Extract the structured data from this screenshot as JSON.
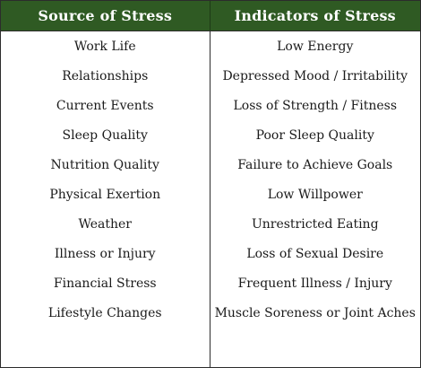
{
  "headers": {
    "source": "Source of Stress",
    "indicators": "Indicators of Stress"
  },
  "sources": [
    "Work Life",
    "Relationships",
    "Current Events",
    "Sleep Quality",
    "Nutrition Quality",
    "Physical Exertion",
    "Weather",
    "Illness or Injury",
    "Financial Stress",
    "Lifestyle Changes"
  ],
  "indicators": [
    "Low Energy",
    "Depressed Mood / Irritability",
    "Loss of Strength / Fitness",
    "Poor Sleep Quality",
    "Failure to Achieve Goals",
    "Low Willpower",
    "Unrestricted Eating",
    "Loss of Sexual Desire",
    "Frequent Illness / Injury",
    "Muscle Soreness or Joint Aches"
  ],
  "colors": {
    "header_bg": "#2f5a23",
    "header_text": "#ffffff",
    "border": "#2c2c2c"
  }
}
